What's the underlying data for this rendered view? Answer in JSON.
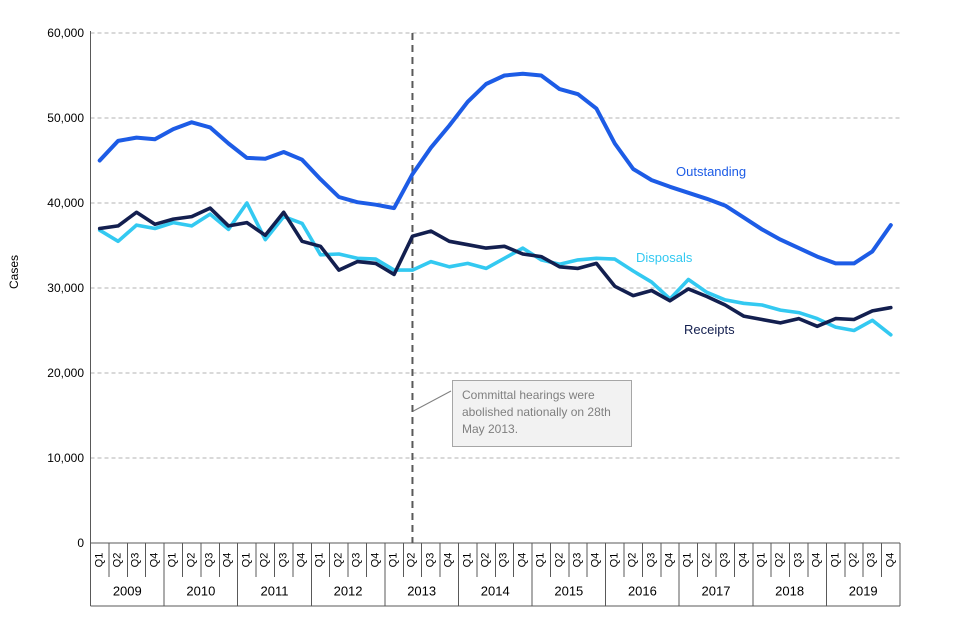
{
  "y_axis": {
    "title": "Cases",
    "tick_values": [
      0,
      10000,
      20000,
      30000,
      40000,
      50000,
      60000
    ],
    "tick_labels": [
      "0",
      "10,000",
      "20,000",
      "30,000",
      "40,000",
      "50,000",
      "60,000"
    ]
  },
  "x_axis": {
    "quarter_labels": [
      "Q1",
      "Q2",
      "Q3",
      "Q4"
    ],
    "years": [
      "2009",
      "2010",
      "2011",
      "2012",
      "2013",
      "2014",
      "2015",
      "2016",
      "2017",
      "2018",
      "2019"
    ]
  },
  "series_labels": {
    "outstanding": "Outstanding",
    "disposals": "Disposals",
    "receipts": "Receipts"
  },
  "annotation": {
    "text": "Committal hearings were abolished nationally on 28th May 2013.",
    "event_quarter": "2013 Q2"
  },
  "colors": {
    "outstanding": "#1d5ce6",
    "disposals": "#33c9f1",
    "receipts": "#131f4f",
    "grid": "#b3b3b3",
    "axis": "#595959",
    "vline": "#595959",
    "callout": "#808080"
  },
  "chart_data": {
    "type": "line",
    "title": "",
    "ylabel": "Cases",
    "ylim": [
      0,
      60000
    ],
    "grid": true,
    "x": [
      "2009 Q1",
      "2009 Q2",
      "2009 Q3",
      "2009 Q4",
      "2010 Q1",
      "2010 Q2",
      "2010 Q3",
      "2010 Q4",
      "2011 Q1",
      "2011 Q2",
      "2011 Q3",
      "2011 Q4",
      "2012 Q1",
      "2012 Q2",
      "2012 Q3",
      "2012 Q4",
      "2013 Q1",
      "2013 Q2",
      "2013 Q3",
      "2013 Q4",
      "2014 Q1",
      "2014 Q2",
      "2014 Q3",
      "2014 Q4",
      "2015 Q1",
      "2015 Q2",
      "2015 Q3",
      "2015 Q4",
      "2016 Q1",
      "2016 Q2",
      "2016 Q3",
      "2016 Q4",
      "2017 Q1",
      "2017 Q2",
      "2017 Q3",
      "2017 Q4",
      "2018 Q1",
      "2018 Q2",
      "2018 Q3",
      "2018 Q4",
      "2019 Q1",
      "2019 Q2",
      "2019 Q3",
      "2019 Q4"
    ],
    "series": [
      {
        "name": "Outstanding",
        "color": "#1d5ce6",
        "values": [
          45000,
          47300,
          47700,
          47500,
          48700,
          49500,
          48900,
          47000,
          45300,
          45200,
          46000,
          45100,
          42800,
          40700,
          40100,
          39800,
          39400,
          43400,
          46500,
          49100,
          51900,
          54000,
          55000,
          55200,
          55000,
          53400,
          52800,
          51100,
          47000,
          44000,
          42700,
          41900,
          41200,
          40500,
          39700,
          38300,
          36900,
          35700,
          34700,
          33700,
          32900,
          32900,
          34300,
          37400
        ]
      },
      {
        "name": "Disposals",
        "color": "#33c9f1",
        "values": [
          36800,
          35500,
          37400,
          37000,
          37700,
          37300,
          38700,
          36900,
          40000,
          35700,
          38400,
          37600,
          33900,
          34000,
          33500,
          33400,
          32100,
          32100,
          33100,
          32500,
          32900,
          32300,
          33500,
          34700,
          33300,
          32800,
          33300,
          33500,
          33400,
          32000,
          30700,
          28700,
          31000,
          29500,
          28600,
          28200,
          28000,
          27400,
          27100,
          26400,
          25400,
          25000,
          26200,
          24500
        ]
      },
      {
        "name": "Receipts",
        "color": "#131f4f",
        "values": [
          37000,
          37300,
          38900,
          37500,
          38100,
          38400,
          39400,
          37300,
          37700,
          36200,
          38900,
          35500,
          34900,
          32100,
          33100,
          32900,
          31600,
          36100,
          36700,
          35500,
          35100,
          34700,
          34900,
          34000,
          33700,
          32500,
          32300,
          32900,
          30200,
          29100,
          29700,
          28500,
          29900,
          29000,
          28000,
          26700,
          26300,
          25900,
          26400,
          25500,
          26400,
          26300,
          27300,
          27700
        ]
      }
    ],
    "event_line_x": "2013 Q2"
  }
}
